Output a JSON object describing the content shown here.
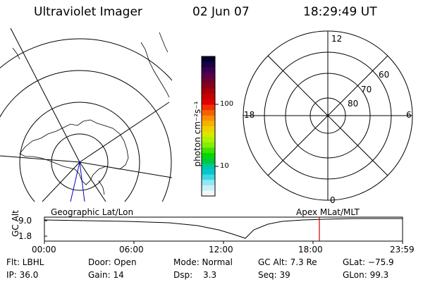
{
  "header": {
    "instrument": "Ultraviolet Imager",
    "date": "02 Jun 07",
    "time": "18:29:49 UT"
  },
  "colorbar": {
    "unit_label": "photon cm⁻²s⁻¹",
    "ticks": [
      "100",
      "10"
    ],
    "colors": [
      "#000033",
      "#1a0040",
      "#3a0050",
      "#55004a",
      "#700030",
      "#8a0018",
      "#a8000a",
      "#c80000",
      "#e00000",
      "#f03000",
      "#f86000",
      "#f89000",
      "#f8b000",
      "#f0d000",
      "#d8e800",
      "#b0f000",
      "#80f000",
      "#40e000",
      "#00d800",
      "#00c840",
      "#00c8a0",
      "#00c8d0",
      "#40d8e0",
      "#90e8f0",
      "#c8f0f8",
      "#f0f8ff"
    ]
  },
  "polar_plot": {
    "mlt_labels": [
      "12",
      "18",
      "6",
      "0"
    ],
    "lat_labels": [
      "60",
      "70",
      "80"
    ]
  },
  "map": {
    "label_left": "Geographic Lat/Lon",
    "label_right": "Apex MLat/MLT"
  },
  "timeline": {
    "axis_label": "GC Alt",
    "y_ticks": [
      "9.0",
      "1.8"
    ],
    "x_ticks": [
      "00:00",
      "06:00",
      "12:00",
      "18:00",
      "23:59"
    ],
    "marker_color": "#d00000"
  },
  "status": {
    "filter": "Flt: LBHL",
    "ip": "IP: 36.0",
    "door": "Door: Open",
    "gain": "Gain: 14",
    "mode": "Mode: Normal",
    "dsp_label": "Dsp:",
    "dsp_value": "3.3",
    "gc_alt": "GC Alt: 7.3 Re",
    "seq": "Seq: 39",
    "glat": "GLat: −75.9",
    "glon": "GLon:  99.3"
  }
}
